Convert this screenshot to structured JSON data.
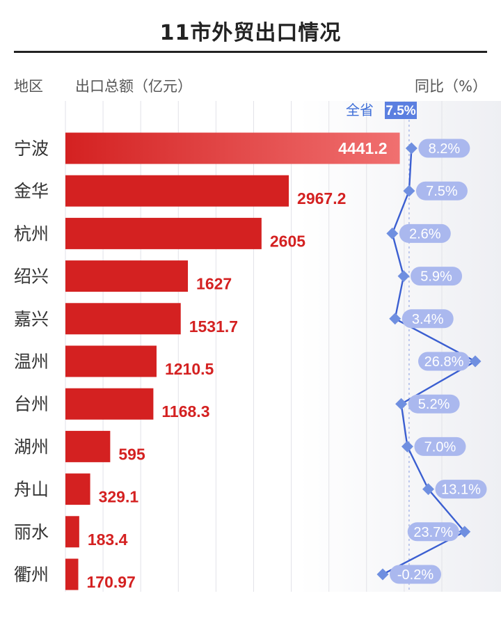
{
  "header": {
    "title": "11市外贸出口情况",
    "col_region": "地区",
    "col_export": "出口总额（亿元）",
    "col_yoy": "同比（%）"
  },
  "colors": {
    "bar": "#d42121",
    "bar_light": "#f07070",
    "line": "#3b5fd1",
    "marker": "#6f8fe0",
    "pill": "#aab8ee",
    "province_badge": "#5b7fe0"
  },
  "chart_data": {
    "type": "bar",
    "orientation": "horizontal",
    "title": "11市外贸出口情况",
    "categories": [
      "宁波",
      "金华",
      "杭州",
      "绍兴",
      "嘉兴",
      "温州",
      "台州",
      "湖州",
      "舟山",
      "丽水",
      "衢州"
    ],
    "value_labels": [
      "4441.2",
      "2967.2",
      "2605",
      "1627",
      "1531.7",
      "1210.5",
      "1168.3",
      "595",
      "329.1",
      "183.4",
      "170.97"
    ],
    "values": [
      4441.2,
      2967.2,
      2605,
      1627,
      1531.7,
      1210.5,
      1168.3,
      595,
      329.1,
      183.4,
      170.97
    ],
    "xlim": [
      0,
      5000
    ],
    "yoy": {
      "type": "line",
      "labels": [
        "8.2%",
        "7.5%",
        "2.6%",
        "5.9%",
        "3.4%",
        "26.8%",
        "5.2%",
        "7.0%",
        "13.1%",
        "23.7%",
        "-0.2%"
      ],
      "values": [
        8.2,
        7.5,
        2.6,
        5.9,
        3.4,
        26.8,
        5.2,
        7.0,
        13.1,
        23.7,
        -0.2
      ],
      "xlim": [
        -0.2,
        26.8
      ],
      "province_label": "全省",
      "province_value_label": "7.5%",
      "province_value": 7.5
    },
    "grid": true
  }
}
